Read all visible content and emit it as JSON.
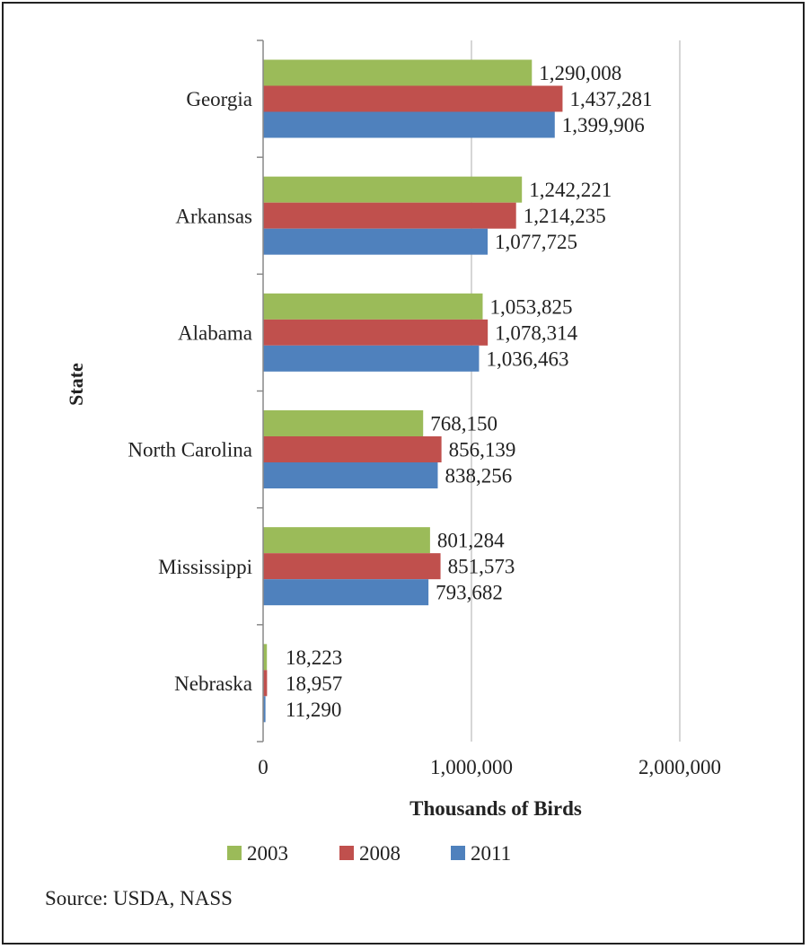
{
  "chart_data": {
    "type": "bar",
    "orientation": "horizontal",
    "categories": [
      "Georgia",
      "Arkansas",
      "Alabama",
      "North Carolina",
      "Mississippi",
      "Nebraska"
    ],
    "series": [
      {
        "name": "2003",
        "color": "#9bbb59",
        "values": [
          1290008,
          1242221,
          1053825,
          768150,
          801284,
          18223
        ],
        "labels": [
          "1,290,008",
          "1,242,221",
          "1,053,825",
          "768,150",
          "801,284",
          "18,223"
        ]
      },
      {
        "name": "2008",
        "color": "#c0504d",
        "values": [
          1437281,
          1214235,
          1078314,
          856139,
          851573,
          18957
        ],
        "labels": [
          "1,437,281",
          "1,214,235",
          "1,078,314",
          "856,139",
          "851,573",
          "18,957"
        ]
      },
      {
        "name": "2011",
        "color": "#4f81bd",
        "values": [
          1399906,
          1077725,
          1036463,
          838256,
          793682,
          11290
        ],
        "labels": [
          "1,399,906",
          "1,077,725",
          "1,036,463",
          "838,256",
          "793,682",
          "11,290"
        ]
      }
    ],
    "xlabel": "Thousands of Birds",
    "ylabel": "State",
    "xlim": [
      0,
      2000000
    ],
    "xticks": [
      0,
      1000000,
      2000000
    ],
    "xtick_labels": [
      "0",
      "1,000,000",
      "2,000,000"
    ],
    "grid": "vertical",
    "legend_position": "bottom"
  },
  "source_text": "Source: USDA, NASS"
}
